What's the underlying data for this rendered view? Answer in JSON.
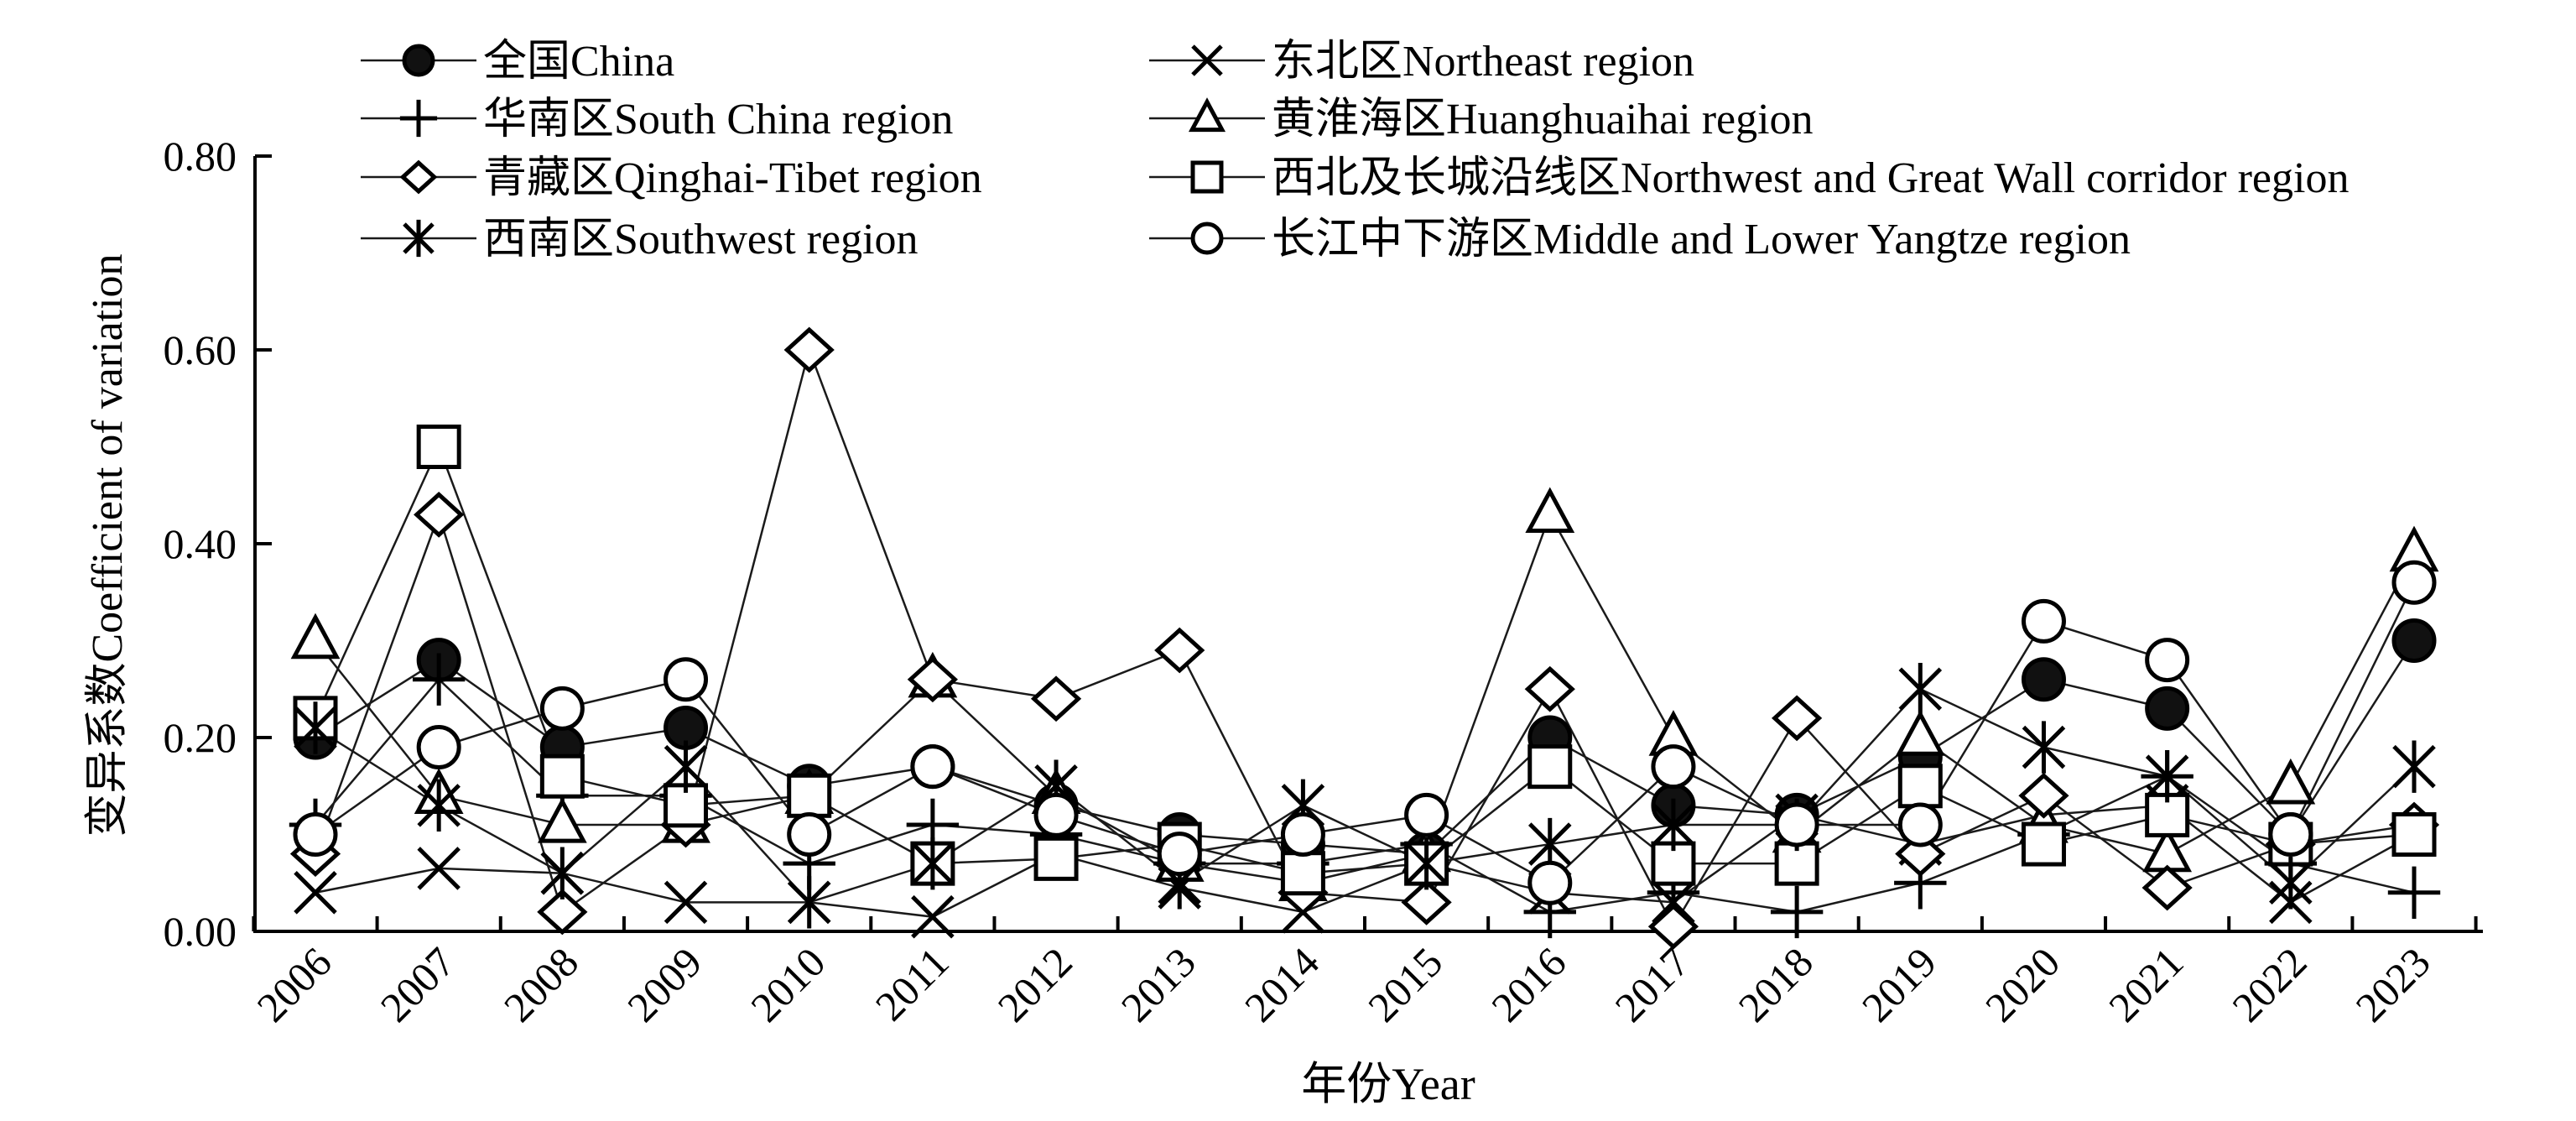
{
  "chart_data": {
    "type": "line",
    "title": "",
    "xlabel": "年份Year",
    "ylabel": "变异系数Coefficient of variation",
    "ylim": [
      0,
      0.8
    ],
    "yticks": [
      "0.00",
      "0.20",
      "0.40",
      "0.60",
      "0.80"
    ],
    "ytick_values": [
      0,
      0.2,
      0.4,
      0.6,
      0.8
    ],
    "x": [
      "2006",
      "2007",
      "2008",
      "2009",
      "2010",
      "2011",
      "2012",
      "2013",
      "2014",
      "2015",
      "2016",
      "2017",
      "2018",
      "2019",
      "2020",
      "2021",
      "2022",
      "2023"
    ],
    "legend_position": "top",
    "series": [
      {
        "name": "全国China",
        "marker": "filled-circle",
        "values": [
          0.2,
          0.28,
          0.19,
          0.21,
          0.15,
          0.17,
          0.13,
          0.1,
          0.09,
          0.08,
          0.2,
          0.13,
          0.12,
          0.18,
          0.26,
          0.23,
          0.1,
          0.3
        ]
      },
      {
        "name": "东北区Northeast region",
        "marker": "x",
        "values": [
          0.04,
          0.065,
          0.06,
          0.03,
          0.03,
          0.015,
          0.08,
          0.045,
          0.02,
          0.07,
          0.04,
          0.03,
          0.12,
          0.09,
          0.12,
          0.13,
          0.03,
          0.1
        ]
      },
      {
        "name": "华南区South China region",
        "marker": "plus",
        "values": [
          0.11,
          0.26,
          0.14,
          0.14,
          0.07,
          0.11,
          0.1,
          0.07,
          0.07,
          0.09,
          0.02,
          0.04,
          0.02,
          0.05,
          0.1,
          0.16,
          0.07,
          0.04
        ]
      },
      {
        "name": "黄淮海区Huanghuaihai region",
        "marker": "triangle",
        "values": [
          0.3,
          0.14,
          0.11,
          0.11,
          0.14,
          0.26,
          0.14,
          0.07,
          0.05,
          0.08,
          0.43,
          0.2,
          0.1,
          0.2,
          0.11,
          0.08,
          0.15,
          0.39
        ]
      },
      {
        "name": "青藏区Qinghai-Tibet region",
        "marker": "diamond",
        "values": [
          0.08,
          0.43,
          0.02,
          0.11,
          0.6,
          0.26,
          0.24,
          0.29,
          0.04,
          0.03,
          0.25,
          0.005,
          0.22,
          0.08,
          0.14,
          0.045,
          0.09,
          0.11
        ]
      },
      {
        "name": "西北及长城沿线区Northwest and Great Wall corridor region",
        "marker": "square",
        "values": [
          0.22,
          0.5,
          0.16,
          0.13,
          0.14,
          0.07,
          0.075,
          0.09,
          0.06,
          0.07,
          0.17,
          0.07,
          0.07,
          0.15,
          0.09,
          0.12,
          0.09,
          0.1
        ]
      },
      {
        "name": "西南区Southwest region",
        "marker": "asterisk",
        "values": [
          0.21,
          0.13,
          0.06,
          0.17,
          0.03,
          0.07,
          0.15,
          0.05,
          0.13,
          0.07,
          0.09,
          0.11,
          0.11,
          0.25,
          0.19,
          0.16,
          0.05,
          0.17
        ]
      },
      {
        "name": "长江中下游区Middle and Lower Yangtze region",
        "marker": "open-circle",
        "values": [
          0.1,
          0.19,
          0.23,
          0.26,
          0.1,
          0.17,
          0.12,
          0.08,
          0.1,
          0.12,
          0.05,
          0.17,
          0.11,
          0.11,
          0.32,
          0.28,
          0.1,
          0.36
        ]
      }
    ]
  }
}
